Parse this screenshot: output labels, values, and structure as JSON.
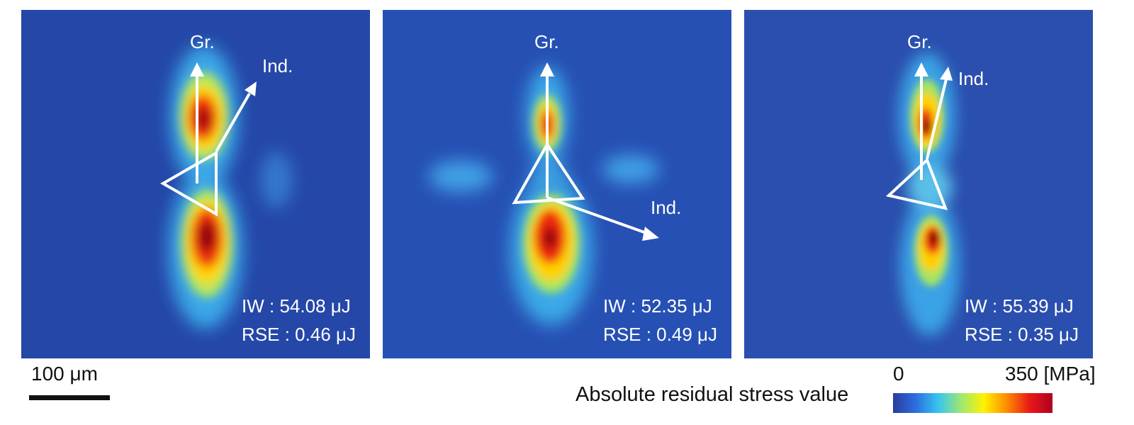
{
  "panels": [
    {
      "gr_label": "Gr.",
      "ind_label": "Ind.",
      "iw": "IW : 54.08 μJ",
      "rse": "RSE : 0.46 μJ"
    },
    {
      "gr_label": "Gr.",
      "ind_label": "Ind.",
      "iw": "IW : 52.35 μJ",
      "rse": "RSE : 0.49 μJ"
    },
    {
      "gr_label": "Gr.",
      "ind_label": "Ind.",
      "iw": "IW : 55.39 μJ",
      "rse": "RSE : 0.35 μJ"
    }
  ],
  "scalebar": {
    "label": "100 μm"
  },
  "colorbar": {
    "title": "Absolute residual stress value",
    "min_label": "0",
    "max_label": "350 [MPa]",
    "colors": [
      "#2a3c9c",
      "#2c6ee0",
      "#37c6ef",
      "#9fe870",
      "#fff200",
      "#ff8a00",
      "#e81818",
      "#b00020"
    ]
  },
  "colormap": {
    "background": "#2447a8",
    "low": "#3a9fe8",
    "mid": "#ffe600",
    "high": "#e51a1a",
    "peak": "#7a0000"
  }
}
